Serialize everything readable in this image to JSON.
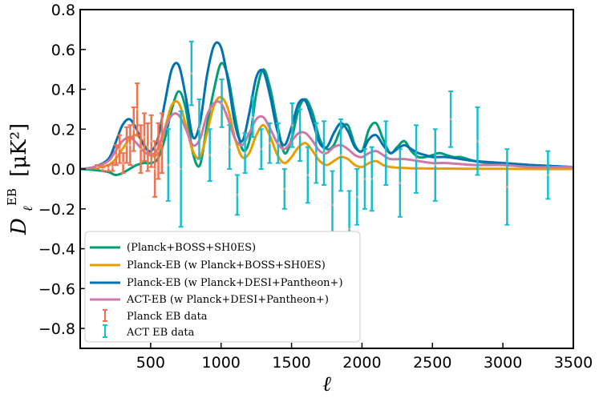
{
  "chart_data": {
    "type": "line",
    "title": "",
    "xlabel": "ℓ",
    "ylabel_main": "D",
    "ylabel_sub": "ℓ",
    "ylabel_sup": "EB",
    "ylabel_unit": "[μK²]",
    "xlim": [
      0,
      3500
    ],
    "ylim": [
      -0.9,
      0.8
    ],
    "xticks": [
      500,
      1000,
      1500,
      2000,
      2500,
      3000,
      3500
    ],
    "xtick_labels": [
      "500",
      "1000",
      "1500",
      "2000",
      "2500",
      "3000",
      "3500"
    ],
    "yticks": [
      -0.8,
      -0.6,
      -0.4,
      -0.2,
      0.0,
      0.2,
      0.4,
      0.6,
      0.8
    ],
    "ytick_labels": [
      "−0.8",
      "−0.6",
      "−0.4",
      "−0.2",
      "0.0",
      "0.2",
      "0.4",
      "0.6",
      "0.8"
    ],
    "legend_position": "lower-left",
    "series": [
      {
        "name": "(Planck+BOSS+SH0ES)",
        "color": "#009e73",
        "x": [
          0,
          100,
          200,
          250,
          300,
          350,
          400,
          450,
          500,
          550,
          600,
          650,
          700,
          750,
          800,
          850,
          900,
          950,
          1000,
          1050,
          1100,
          1150,
          1200,
          1250,
          1300,
          1350,
          1400,
          1450,
          1500,
          1550,
          1600,
          1650,
          1700,
          1750,
          1800,
          1850,
          1900,
          1950,
          2000,
          2050,
          2100,
          2150,
          2200,
          2250,
          2300,
          2350,
          2400,
          2450,
          2500,
          2550,
          2600,
          2650,
          2700,
          2750,
          2800,
          2900,
          3000,
          3200,
          3500
        ],
        "values": [
          0,
          -0.005,
          -0.015,
          -0.03,
          -0.02,
          0.0,
          0.02,
          0.03,
          0.03,
          0.05,
          0.15,
          0.3,
          0.39,
          0.3,
          0.08,
          0.02,
          0.22,
          0.4,
          0.53,
          0.46,
          0.26,
          0.1,
          0.14,
          0.38,
          0.5,
          0.4,
          0.22,
          0.08,
          0.15,
          0.3,
          0.35,
          0.28,
          0.15,
          0.1,
          0.12,
          0.2,
          0.22,
          0.12,
          0.09,
          0.2,
          0.23,
          0.15,
          0.08,
          0.11,
          0.14,
          0.09,
          0.06,
          0.06,
          0.07,
          0.08,
          0.07,
          0.06,
          0.06,
          0.05,
          0.04,
          0.03,
          0.03,
          0.02,
          0.01
        ]
      },
      {
        "name": "Planck-EB (w Planck+BOSS+SH0ES)",
        "color": "#e69f00",
        "x": [
          0,
          100,
          200,
          250,
          300,
          350,
          400,
          450,
          500,
          550,
          600,
          650,
          700,
          750,
          800,
          850,
          900,
          950,
          1000,
          1050,
          1100,
          1150,
          1200,
          1250,
          1300,
          1350,
          1400,
          1450,
          1500,
          1550,
          1600,
          1650,
          1700,
          1750,
          1800,
          1850,
          1900,
          1950,
          2000,
          2050,
          2100,
          2150,
          2200,
          2300,
          2400,
          2500,
          2600,
          2800,
          3000,
          3200,
          3500
        ],
        "values": [
          0,
          0.005,
          0.02,
          0.05,
          0.1,
          0.15,
          0.17,
          0.13,
          0.07,
          0.08,
          0.2,
          0.32,
          0.33,
          0.22,
          0.09,
          0.06,
          0.18,
          0.32,
          0.36,
          0.3,
          0.15,
          0.06,
          0.08,
          0.17,
          0.22,
          0.16,
          0.07,
          0.03,
          0.06,
          0.11,
          0.13,
          0.09,
          0.04,
          0.02,
          0.04,
          0.06,
          0.05,
          0.02,
          0.01,
          0.03,
          0.04,
          0.02,
          0.01,
          0.005,
          0.003,
          0.002,
          0.002,
          0.001,
          0.001,
          0.0,
          0.0
        ]
      },
      {
        "name": "Planck-EB (w Planck+DESI+Pantheon+)",
        "color": "#0072b2",
        "x": [
          0,
          100,
          200,
          250,
          300,
          350,
          400,
          450,
          500,
          550,
          600,
          650,
          700,
          750,
          800,
          850,
          900,
          950,
          1000,
          1050,
          1100,
          1150,
          1200,
          1250,
          1300,
          1350,
          1400,
          1450,
          1500,
          1550,
          1600,
          1650,
          1700,
          1750,
          1800,
          1850,
          1900,
          1950,
          2000,
          2050,
          2100,
          2150,
          2200,
          2250,
          2300,
          2350,
          2400,
          2450,
          2500,
          2600,
          2700,
          2800,
          3000,
          3200,
          3500
        ],
        "values": [
          0,
          0.01,
          0.05,
          0.13,
          0.22,
          0.25,
          0.2,
          0.12,
          0.09,
          0.15,
          0.33,
          0.5,
          0.52,
          0.36,
          0.16,
          0.23,
          0.47,
          0.62,
          0.61,
          0.44,
          0.22,
          0.14,
          0.28,
          0.46,
          0.49,
          0.36,
          0.19,
          0.12,
          0.21,
          0.33,
          0.34,
          0.24,
          0.13,
          0.11,
          0.18,
          0.23,
          0.19,
          0.11,
          0.09,
          0.15,
          0.17,
          0.12,
          0.08,
          0.1,
          0.12,
          0.1,
          0.08,
          0.07,
          0.06,
          0.06,
          0.05,
          0.04,
          0.03,
          0.02,
          0.01
        ]
      },
      {
        "name": "ACT-EB (w Planck+DESI+Pantheon+)",
        "color": "#cc79a7",
        "x": [
          0,
          100,
          200,
          250,
          300,
          350,
          400,
          450,
          500,
          550,
          600,
          650,
          700,
          750,
          800,
          850,
          900,
          950,
          1000,
          1050,
          1100,
          1150,
          1200,
          1250,
          1300,
          1350,
          1400,
          1450,
          1500,
          1550,
          1600,
          1650,
          1700,
          1750,
          1800,
          1850,
          1900,
          1950,
          2000,
          2050,
          2100,
          2150,
          2200,
          2300,
          2400,
          2500,
          2600,
          2800,
          3000,
          3200,
          3500
        ],
        "values": [
          0,
          0.01,
          0.04,
          0.09,
          0.14,
          0.16,
          0.13,
          0.09,
          0.07,
          0.1,
          0.2,
          0.27,
          0.27,
          0.2,
          0.12,
          0.15,
          0.27,
          0.33,
          0.33,
          0.25,
          0.15,
          0.12,
          0.18,
          0.25,
          0.26,
          0.2,
          0.13,
          0.1,
          0.14,
          0.18,
          0.18,
          0.14,
          0.09,
          0.08,
          0.11,
          0.12,
          0.1,
          0.07,
          0.06,
          0.08,
          0.09,
          0.07,
          0.05,
          0.05,
          0.04,
          0.03,
          0.03,
          0.02,
          0.02,
          0.01,
          0.01
        ]
      }
    ],
    "errorbar_series": [
      {
        "name": "Planck EB data",
        "color": "#f4704f",
        "points": [
          {
            "x": 120,
            "y": 0.01,
            "err": 0.01
          },
          {
            "x": 160,
            "y": 0.0,
            "err": 0.01
          },
          {
            "x": 200,
            "y": 0.005,
            "err": 0.015
          },
          {
            "x": 230,
            "y": 0.01,
            "err": 0.02
          },
          {
            "x": 255,
            "y": 0.07,
            "err": 0.05
          },
          {
            "x": 280,
            "y": 0.1,
            "err": 0.07
          },
          {
            "x": 305,
            "y": 0.03,
            "err": 0.05
          },
          {
            "x": 330,
            "y": 0.12,
            "err": 0.09
          },
          {
            "x": 355,
            "y": 0.12,
            "err": 0.1
          },
          {
            "x": 380,
            "y": 0.2,
            "err": 0.11
          },
          {
            "x": 405,
            "y": 0.3,
            "err": 0.13
          },
          {
            "x": 430,
            "y": 0.1,
            "err": 0.12
          },
          {
            "x": 455,
            "y": 0.16,
            "err": 0.12
          },
          {
            "x": 480,
            "y": 0.11,
            "err": 0.12
          },
          {
            "x": 505,
            "y": 0.14,
            "err": 0.13
          },
          {
            "x": 530,
            "y": 0.0,
            "err": 0.14
          },
          {
            "x": 555,
            "y": 0.09,
            "err": 0.14
          },
          {
            "x": 580,
            "y": 0.13,
            "err": 0.15
          }
        ]
      },
      {
        "name": "ACT EB data",
        "color": "#17becf",
        "points": [
          {
            "x": 625,
            "y": 0.02,
            "err": 0.18
          },
          {
            "x": 715,
            "y": 0.0,
            "err": 0.29
          },
          {
            "x": 790,
            "y": 0.48,
            "err": 0.16
          },
          {
            "x": 845,
            "y": 0.2,
            "err": 0.15
          },
          {
            "x": 920,
            "y": 0.07,
            "err": 0.13
          },
          {
            "x": 1005,
            "y": 0.33,
            "err": 0.12
          },
          {
            "x": 1060,
            "y": 0.11,
            "err": 0.11
          },
          {
            "x": 1115,
            "y": -0.13,
            "err": 0.1
          },
          {
            "x": 1170,
            "y": 0.08,
            "err": 0.1
          },
          {
            "x": 1225,
            "y": 0.26,
            "err": 0.1
          },
          {
            "x": 1285,
            "y": 0.1,
            "err": 0.1
          },
          {
            "x": 1345,
            "y": 0.13,
            "err": 0.1
          },
          {
            "x": 1405,
            "y": 0.13,
            "err": 0.1
          },
          {
            "x": 1450,
            "y": -0.1,
            "err": 0.1
          },
          {
            "x": 1505,
            "y": 0.22,
            "err": 0.11
          },
          {
            "x": 1560,
            "y": 0.17,
            "err": 0.13
          },
          {
            "x": 1615,
            "y": -0.03,
            "err": 0.14
          },
          {
            "x": 1675,
            "y": 0.08,
            "err": 0.15
          },
          {
            "x": 1730,
            "y": 0.08,
            "err": 0.16
          },
          {
            "x": 1790,
            "y": -0.18,
            "err": 0.17
          },
          {
            "x": 1850,
            "y": 0.07,
            "err": 0.18
          },
          {
            "x": 1910,
            "y": -0.3,
            "err": 0.19
          },
          {
            "x": 1965,
            "y": -0.14,
            "err": 0.14
          },
          {
            "x": 2020,
            "y": -0.05,
            "err": 0.15
          },
          {
            "x": 2070,
            "y": -0.05,
            "err": 0.16
          },
          {
            "x": 2170,
            "y": 0.08,
            "err": 0.16
          },
          {
            "x": 2270,
            "y": -0.07,
            "err": 0.17
          },
          {
            "x": 2385,
            "y": 0.05,
            "err": 0.17
          },
          {
            "x": 2520,
            "y": 0.02,
            "err": 0.18
          },
          {
            "x": 2630,
            "y": 0.25,
            "err": 0.14
          },
          {
            "x": 2820,
            "y": 0.14,
            "err": 0.17
          },
          {
            "x": 3030,
            "y": -0.09,
            "err": 0.19
          },
          {
            "x": 3320,
            "y": -0.03,
            "err": 0.12
          }
        ]
      }
    ]
  }
}
